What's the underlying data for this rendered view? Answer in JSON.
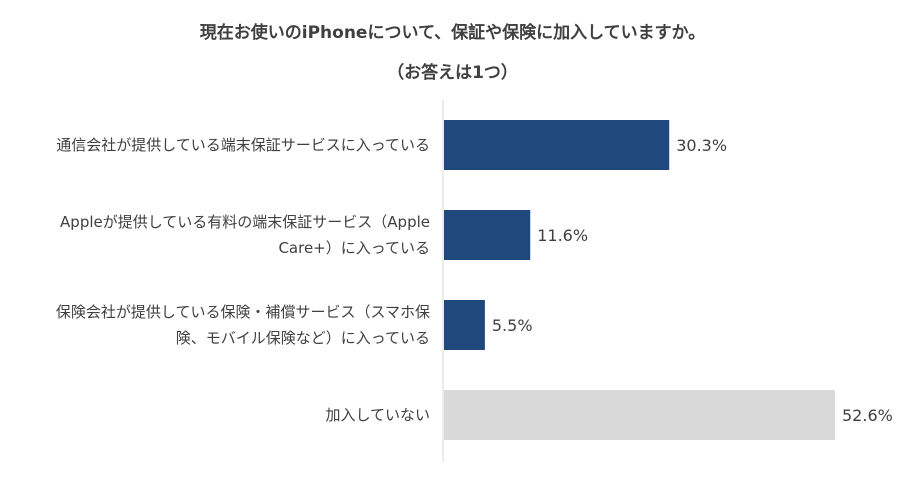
{
  "chart_data": {
    "type": "bar",
    "orientation": "horizontal",
    "title_lines": [
      "現在お使いのiPhoneについて、保証や保険に加入していますか。",
      "（お答えは1つ）"
    ],
    "categories": [
      [
        "通信会社が提供している端末保証サービスに入っている"
      ],
      [
        "Appleが提供している有料の端末保証サービス（Apple",
        "Care+）に入っている"
      ],
      [
        "保険会社が提供している保険・補償サービス（スマホ保",
        "険、モバイル保険など）に入っている"
      ],
      [
        "加入していない"
      ]
    ],
    "values": [
      30.3,
      11.6,
      5.5,
      52.6
    ],
    "value_labels": [
      "30.3%",
      "11.6%",
      "5.5%",
      "52.6%"
    ],
    "bar_colors": [
      "#1f497d",
      "#1f497d",
      "#1f497d",
      "#d9d9d9"
    ],
    "xlim": [
      0,
      52.6
    ],
    "grid": false,
    "legend": "none"
  }
}
